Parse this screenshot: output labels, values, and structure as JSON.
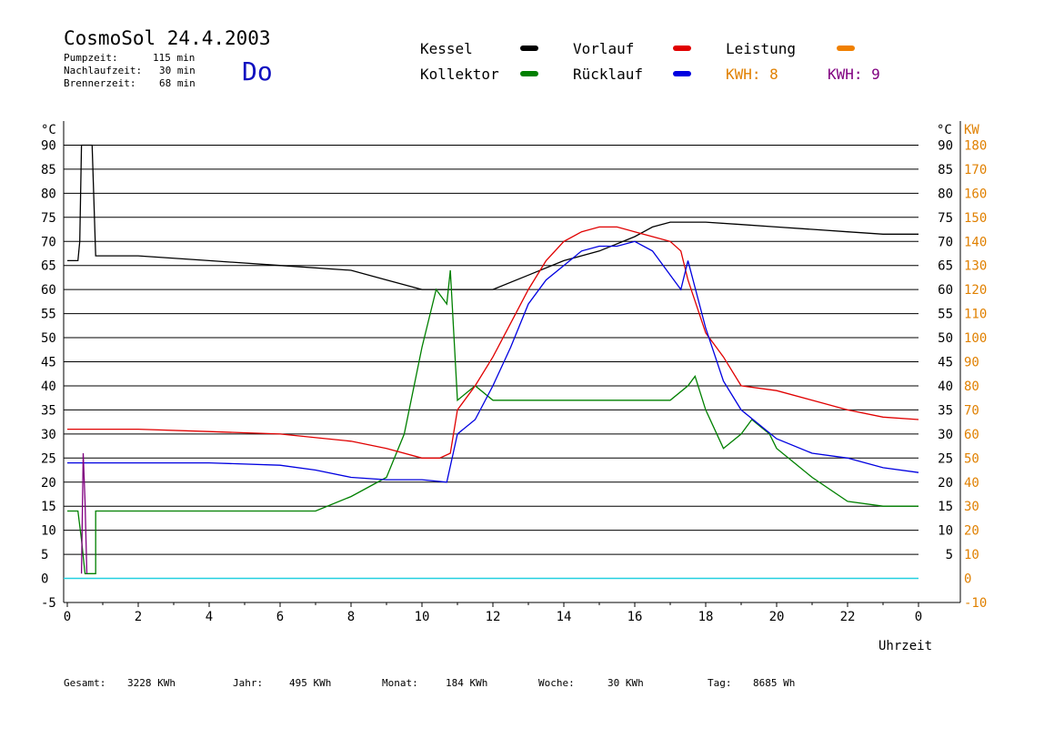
{
  "header": {
    "title": "CosmoSol 24.4.2003",
    "day": "Do",
    "stats": [
      {
        "label": "Pumpzeit:",
        "value": "115 min"
      },
      {
        "label": "Nachlaufzeit:",
        "value": "30 min"
      },
      {
        "label": "Brennerzeit:",
        "value": "68 min"
      }
    ]
  },
  "legend": [
    {
      "label": "Kessel",
      "color": "#000000"
    },
    {
      "label": "Vorlauf",
      "color": "#e00000"
    },
    {
      "label": "Leistung",
      "color": "#f08000"
    },
    {
      "label": "Kollektor",
      "color": "#008000"
    },
    {
      "label": "Rücklauf",
      "color": "#0000e0"
    },
    {
      "label": "KWH: 8",
      "color": "#e08000"
    },
    {
      "label": "KWH: 9",
      "color": "#800080"
    }
  ],
  "footer": [
    {
      "label": "Gesamt:",
      "value": "3228 KWh"
    },
    {
      "label": "Jahr:",
      "value": "495 KWh"
    },
    {
      "label": "Monat:",
      "value": "184 KWh"
    },
    {
      "label": "Woche:",
      "value": "30 KWh"
    },
    {
      "label": "Tag:",
      "value": "8685 Wh"
    }
  ],
  "chart_data": {
    "type": "line",
    "xlabel": "Uhrzeit",
    "ylabel": "°C",
    "y2label": "KW",
    "xlim": [
      0,
      24
    ],
    "ylim": [
      -5,
      95
    ],
    "y2lim": [
      -10,
      190
    ],
    "x_ticks": [
      "0",
      "2",
      "4",
      "6",
      "8",
      "10",
      "12",
      "14",
      "16",
      "18",
      "20",
      "22",
      "0"
    ],
    "y_ticks": [
      -5,
      0,
      5,
      10,
      15,
      20,
      25,
      30,
      35,
      40,
      45,
      50,
      55,
      60,
      65,
      70,
      75,
      80,
      85,
      90
    ],
    "y2_ticks": [
      -10,
      0,
      10,
      20,
      30,
      40,
      50,
      60,
      70,
      80,
      90,
      100,
      110,
      120,
      130,
      140,
      150,
      160,
      170,
      180
    ],
    "grid": true,
    "series": [
      {
        "name": "Kessel",
        "color": "#000000",
        "points": [
          [
            0,
            66
          ],
          [
            0.3,
            66
          ],
          [
            0.35,
            70
          ],
          [
            0.4,
            90
          ],
          [
            0.7,
            90
          ],
          [
            0.8,
            67
          ],
          [
            2,
            67
          ],
          [
            4,
            66
          ],
          [
            6,
            65
          ],
          [
            8,
            64
          ],
          [
            9,
            62
          ],
          [
            10,
            60
          ],
          [
            10.6,
            60
          ],
          [
            11,
            60
          ],
          [
            12,
            60
          ],
          [
            13,
            63
          ],
          [
            14,
            66
          ],
          [
            15,
            68
          ],
          [
            16,
            71
          ],
          [
            16.5,
            73
          ],
          [
            17,
            74
          ],
          [
            18,
            74
          ],
          [
            19,
            73.5
          ],
          [
            20,
            73
          ],
          [
            21,
            72.5
          ],
          [
            22,
            72
          ],
          [
            23,
            71.5
          ],
          [
            24,
            71.5
          ]
        ]
      },
      {
        "name": "Kollektor",
        "color": "#008000",
        "points": [
          [
            0,
            14
          ],
          [
            0.3,
            14
          ],
          [
            0.4,
            8
          ],
          [
            0.5,
            1
          ],
          [
            0.8,
            1
          ],
          [
            0.8,
            14
          ],
          [
            2,
            14
          ],
          [
            4,
            14
          ],
          [
            6,
            14
          ],
          [
            7,
            14
          ],
          [
            8,
            17
          ],
          [
            9,
            21
          ],
          [
            9.5,
            30
          ],
          [
            10,
            48
          ],
          [
            10.4,
            60
          ],
          [
            10.7,
            57
          ],
          [
            10.8,
            64
          ],
          [
            11,
            37
          ],
          [
            11.5,
            40
          ],
          [
            12,
            37
          ],
          [
            13,
            37
          ],
          [
            14,
            37
          ],
          [
            15,
            37
          ],
          [
            16,
            37
          ],
          [
            17,
            37
          ],
          [
            17.5,
            40
          ],
          [
            17.7,
            42
          ],
          [
            18,
            35
          ],
          [
            18.5,
            27
          ],
          [
            19,
            30
          ],
          [
            19.3,
            33
          ],
          [
            19.8,
            30
          ],
          [
            20,
            27
          ],
          [
            21,
            21
          ],
          [
            22,
            16
          ],
          [
            23,
            15
          ],
          [
            24,
            15
          ]
        ]
      },
      {
        "name": "Vorlauf",
        "color": "#e00000",
        "points": [
          [
            0,
            31
          ],
          [
            2,
            31
          ],
          [
            4,
            30.5
          ],
          [
            6,
            30
          ],
          [
            8,
            28.5
          ],
          [
            9,
            27
          ],
          [
            10,
            25
          ],
          [
            10.5,
            25
          ],
          [
            10.8,
            26
          ],
          [
            11,
            35
          ],
          [
            11.5,
            40
          ],
          [
            12,
            46
          ],
          [
            12.5,
            53
          ],
          [
            13,
            60
          ],
          [
            13.5,
            66
          ],
          [
            14,
            70
          ],
          [
            14.5,
            72
          ],
          [
            15,
            73
          ],
          [
            15.5,
            73
          ],
          [
            16,
            72
          ],
          [
            16.5,
            71
          ],
          [
            17,
            70
          ],
          [
            17.3,
            68
          ],
          [
            17.5,
            62
          ],
          [
            18,
            51
          ],
          [
            18.5,
            46
          ],
          [
            19,
            40
          ],
          [
            20,
            39
          ],
          [
            21,
            37
          ],
          [
            22,
            35
          ],
          [
            23,
            33.5
          ],
          [
            24,
            33
          ]
        ]
      },
      {
        "name": "Rücklauf",
        "color": "#0000e0",
        "points": [
          [
            0,
            24
          ],
          [
            2,
            24
          ],
          [
            4,
            24
          ],
          [
            6,
            23.5
          ],
          [
            7,
            22.5
          ],
          [
            8,
            21
          ],
          [
            9,
            20.5
          ],
          [
            10,
            20.5
          ],
          [
            10.7,
            20
          ],
          [
            11,
            30
          ],
          [
            11.5,
            33
          ],
          [
            12,
            40
          ],
          [
            12.5,
            48
          ],
          [
            13,
            57
          ],
          [
            13.5,
            62
          ],
          [
            14,
            65
          ],
          [
            14.5,
            68
          ],
          [
            15,
            69
          ],
          [
            15.5,
            69
          ],
          [
            16,
            70
          ],
          [
            16.5,
            68
          ],
          [
            17,
            63
          ],
          [
            17.3,
            60
          ],
          [
            17.5,
            66
          ],
          [
            18,
            52
          ],
          [
            18.5,
            41
          ],
          [
            19,
            35
          ],
          [
            20,
            29
          ],
          [
            21,
            26
          ],
          [
            22,
            25
          ],
          [
            23,
            23
          ],
          [
            24,
            22
          ]
        ]
      },
      {
        "name": "KWH: 9",
        "color": "#800080",
        "points": [
          [
            0.4,
            1
          ],
          [
            0.45,
            26
          ],
          [
            0.5,
            16
          ],
          [
            0.55,
            1
          ]
        ]
      }
    ]
  }
}
